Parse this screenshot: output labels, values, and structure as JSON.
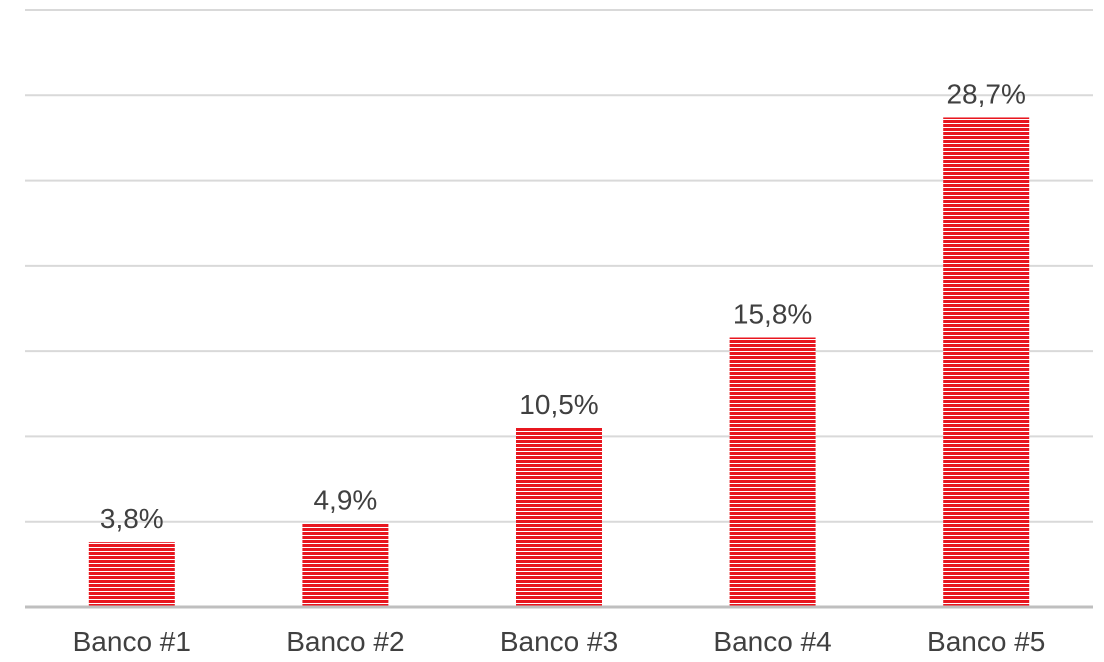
{
  "chart_data": {
    "type": "bar",
    "title": "",
    "xlabel": "",
    "ylabel": "",
    "categories": [
      "Banco #1",
      "Banco #2",
      "Banco #3",
      "Banco #4",
      "Banco #5"
    ],
    "values": [
      3.8,
      4.9,
      10.5,
      15.8,
      28.7
    ],
    "value_labels": [
      "3,8%",
      "4,9%",
      "10,5%",
      "15,8%",
      "28,7%"
    ],
    "ylim": [
      0,
      35
    ],
    "gridline_step": 5,
    "grid": true,
    "y_axis_visible": false,
    "legend": "none",
    "bar_color": "#e8161f",
    "bar_pattern": "horizontal-stripes",
    "stripe_color": "#ffffff",
    "gridline_color": "#d9d9d9",
    "axis_color": "#bfbfbf",
    "text_color": "#404040"
  }
}
